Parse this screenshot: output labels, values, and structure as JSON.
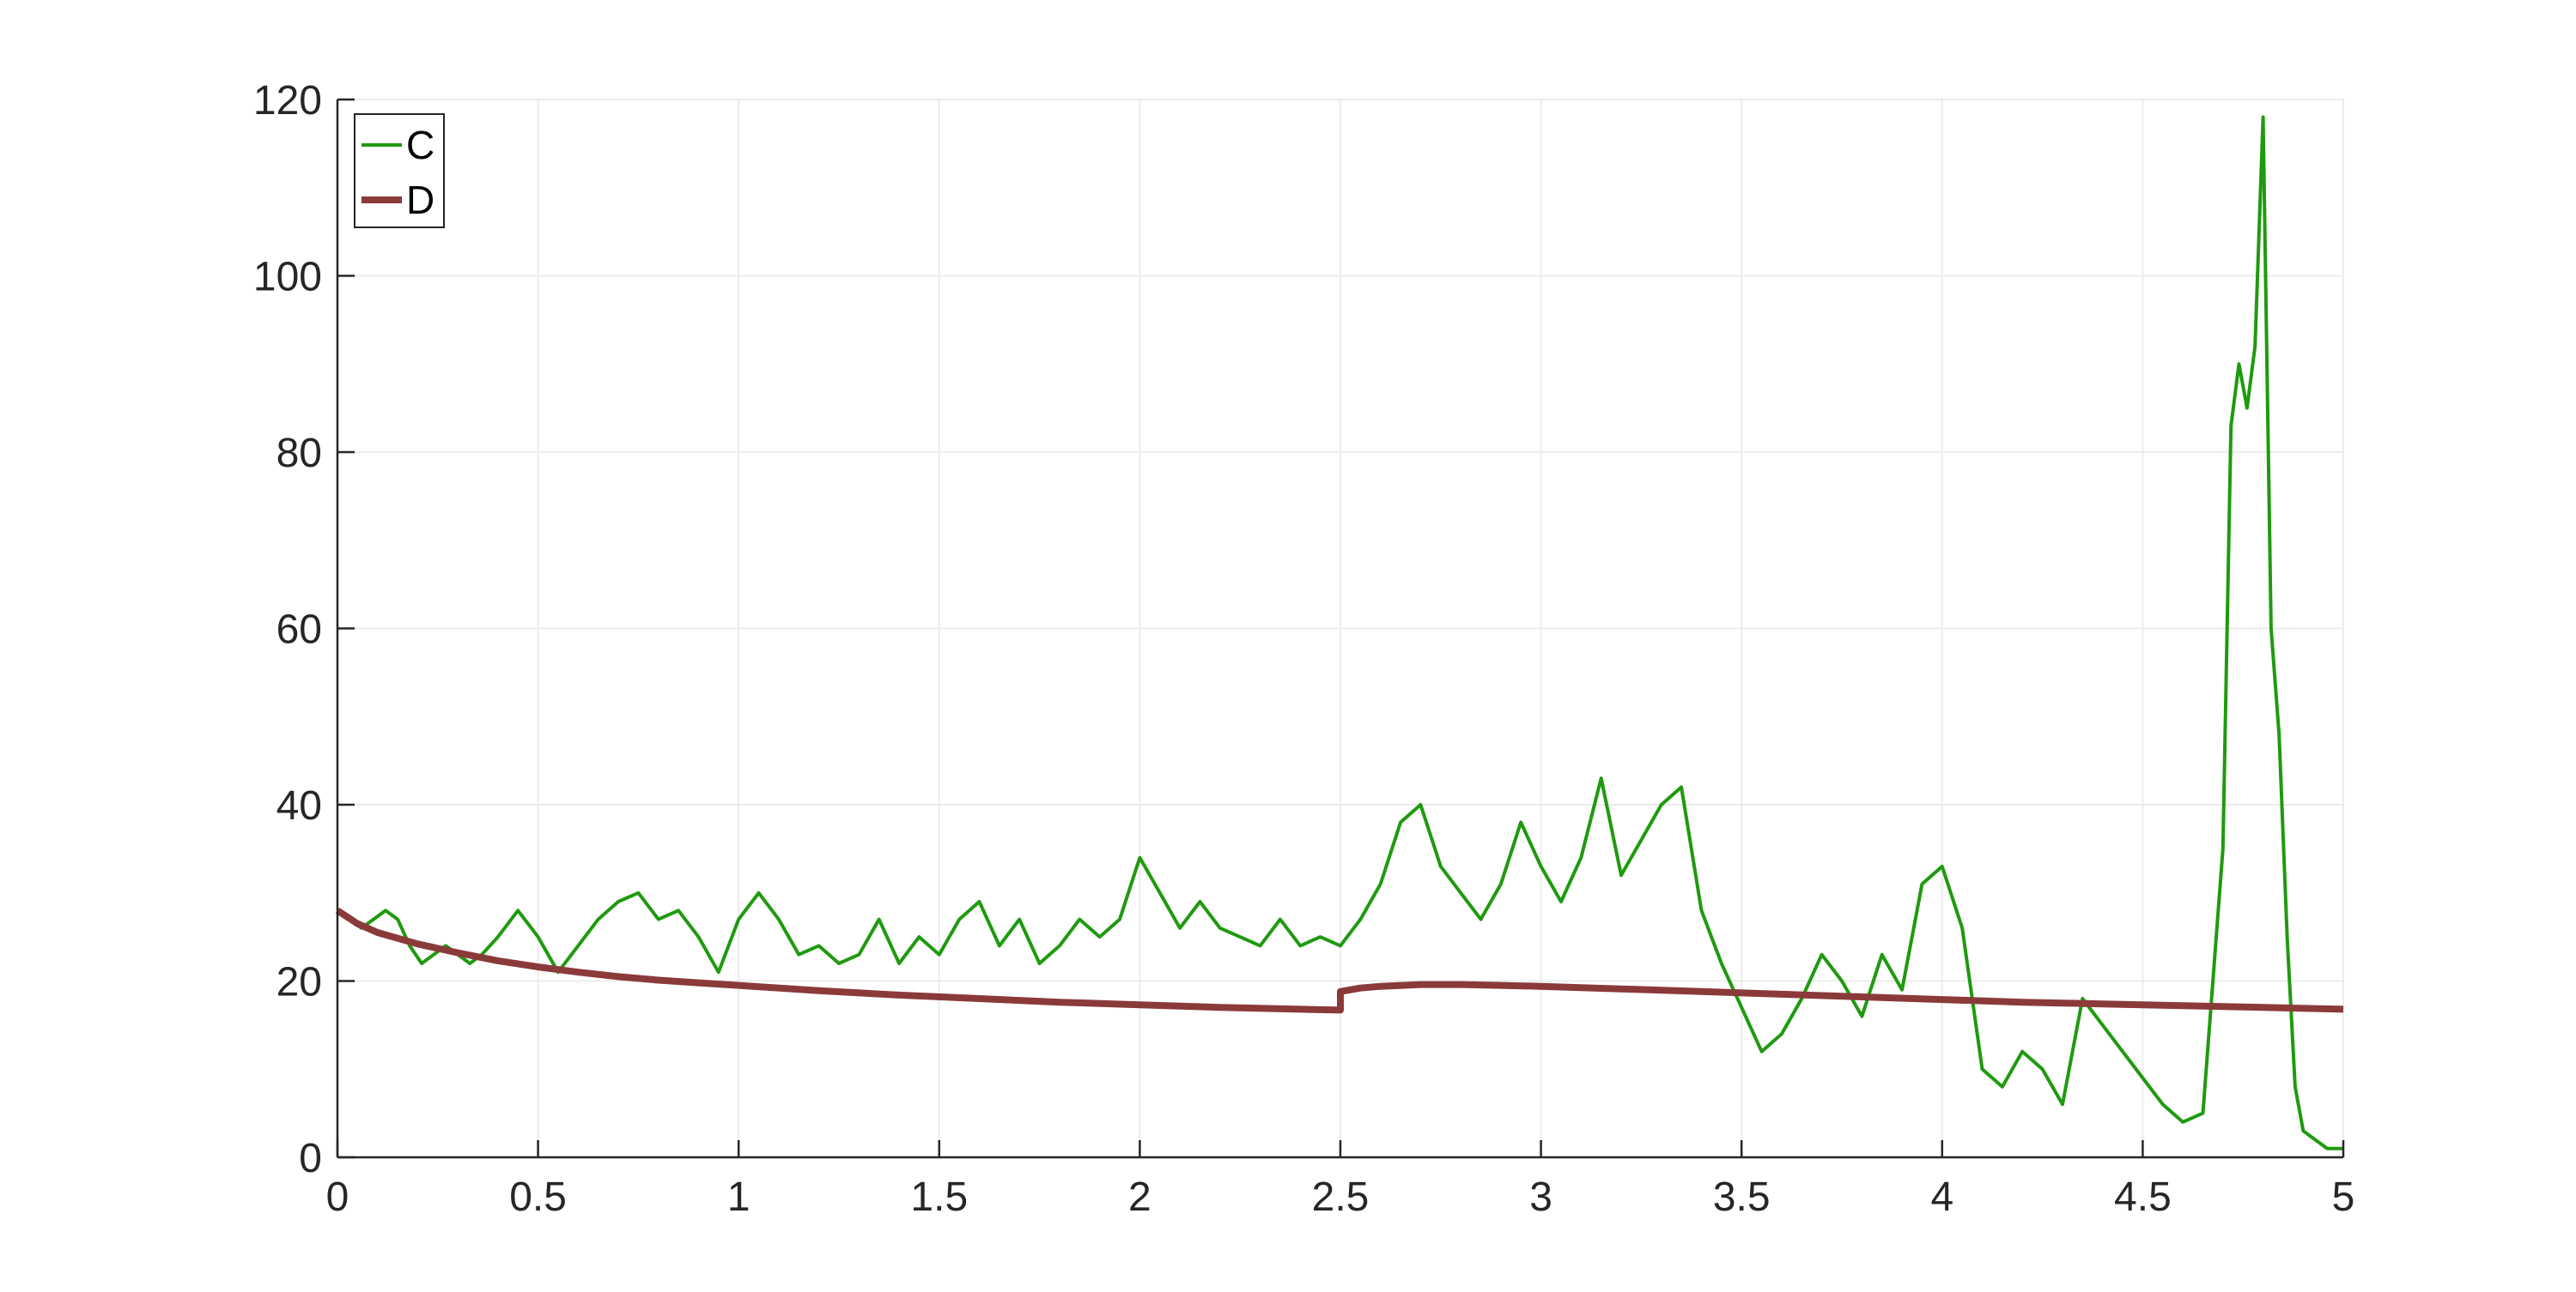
{
  "chart_data": {
    "type": "line",
    "title": "",
    "xlabel": "",
    "ylabel": "",
    "xlim": [
      0,
      5
    ],
    "ylim": [
      0,
      120
    ],
    "xticks": [
      0,
      0.5,
      1,
      1.5,
      2,
      2.5,
      3,
      3.5,
      4,
      4.5,
      5
    ],
    "xtick_labels": [
      "0",
      "0.5",
      "1",
      "1.5",
      "2",
      "2.5",
      "3",
      "3.5",
      "4",
      "4.5",
      "5"
    ],
    "yticks": [
      0,
      20,
      40,
      60,
      80,
      100,
      120
    ],
    "ytick_labels": [
      "0",
      "20",
      "40",
      "60",
      "80",
      "100",
      "120"
    ],
    "grid": true,
    "legend_position": "top-left",
    "series": [
      {
        "name": "C",
        "color": "#1f9a0f",
        "x": [
          0,
          0.03,
          0.06,
          0.09,
          0.12,
          0.15,
          0.18,
          0.21,
          0.24,
          0.27,
          0.3,
          0.33,
          0.36,
          0.4,
          0.45,
          0.5,
          0.55,
          0.6,
          0.65,
          0.7,
          0.75,
          0.8,
          0.85,
          0.9,
          0.95,
          1.0,
          1.05,
          1.1,
          1.15,
          1.2,
          1.25,
          1.3,
          1.35,
          1.4,
          1.45,
          1.5,
          1.55,
          1.6,
          1.65,
          1.7,
          1.75,
          1.8,
          1.85,
          1.9,
          1.95,
          2.0,
          2.05,
          2.1,
          2.15,
          2.2,
          2.25,
          2.3,
          2.35,
          2.4,
          2.45,
          2.5,
          2.55,
          2.6,
          2.65,
          2.7,
          2.75,
          2.8,
          2.85,
          2.9,
          2.95,
          3.0,
          3.05,
          3.1,
          3.15,
          3.2,
          3.25,
          3.3,
          3.35,
          3.4,
          3.45,
          3.5,
          3.55,
          3.6,
          3.65,
          3.7,
          3.75,
          3.8,
          3.85,
          3.9,
          3.95,
          4.0,
          4.05,
          4.1,
          4.15,
          4.2,
          4.25,
          4.3,
          4.35,
          4.4,
          4.45,
          4.5,
          4.55,
          4.6,
          4.65,
          4.7,
          4.72,
          4.74,
          4.76,
          4.78,
          4.8,
          4.82,
          4.84,
          4.86,
          4.88,
          4.9,
          4.93,
          4.96,
          5.0
        ],
        "y": [
          28,
          27,
          26,
          27,
          28,
          27,
          24,
          22,
          23,
          24,
          23,
          22,
          23,
          25,
          28,
          25,
          21,
          24,
          27,
          29,
          30,
          27,
          28,
          25,
          21,
          27,
          30,
          27,
          23,
          24,
          22,
          23,
          27,
          22,
          25,
          23,
          27,
          29,
          24,
          27,
          22,
          24,
          27,
          25,
          27,
          34,
          30,
          26,
          29,
          26,
          25,
          24,
          27,
          24,
          25,
          24,
          27,
          31,
          38,
          40,
          33,
          30,
          27,
          31,
          38,
          33,
          29,
          34,
          43,
          32,
          36,
          40,
          42,
          28,
          22,
          17,
          12,
          14,
          18,
          23,
          20,
          16,
          23,
          19,
          31,
          33,
          26,
          10,
          8,
          12,
          10,
          6,
          18,
          15,
          12,
          9,
          6,
          4,
          5,
          35,
          83,
          90,
          85,
          92,
          118,
          60,
          48,
          25,
          8,
          3,
          2,
          1,
          1
        ]
      },
      {
        "name": "D",
        "color": "#8b3a3a",
        "x": [
          0,
          0.05,
          0.1,
          0.2,
          0.3,
          0.4,
          0.5,
          0.6,
          0.7,
          0.8,
          0.9,
          1.0,
          1.2,
          1.4,
          1.6,
          1.8,
          2.0,
          2.2,
          2.4,
          2.5,
          2.5,
          2.55,
          2.6,
          2.7,
          2.8,
          2.9,
          3.0,
          3.2,
          3.4,
          3.6,
          3.8,
          4.0,
          4.2,
          4.4,
          4.6,
          4.8,
          5.0
        ],
        "y": [
          28,
          26.5,
          25.5,
          24.2,
          23.2,
          22.3,
          21.6,
          21.0,
          20.5,
          20.1,
          19.8,
          19.5,
          18.9,
          18.4,
          18.0,
          17.6,
          17.3,
          17.0,
          16.8,
          16.7,
          18.8,
          19.2,
          19.4,
          19.6,
          19.6,
          19.5,
          19.4,
          19.1,
          18.8,
          18.5,
          18.2,
          17.9,
          17.6,
          17.4,
          17.2,
          17.0,
          16.8
        ]
      }
    ]
  }
}
